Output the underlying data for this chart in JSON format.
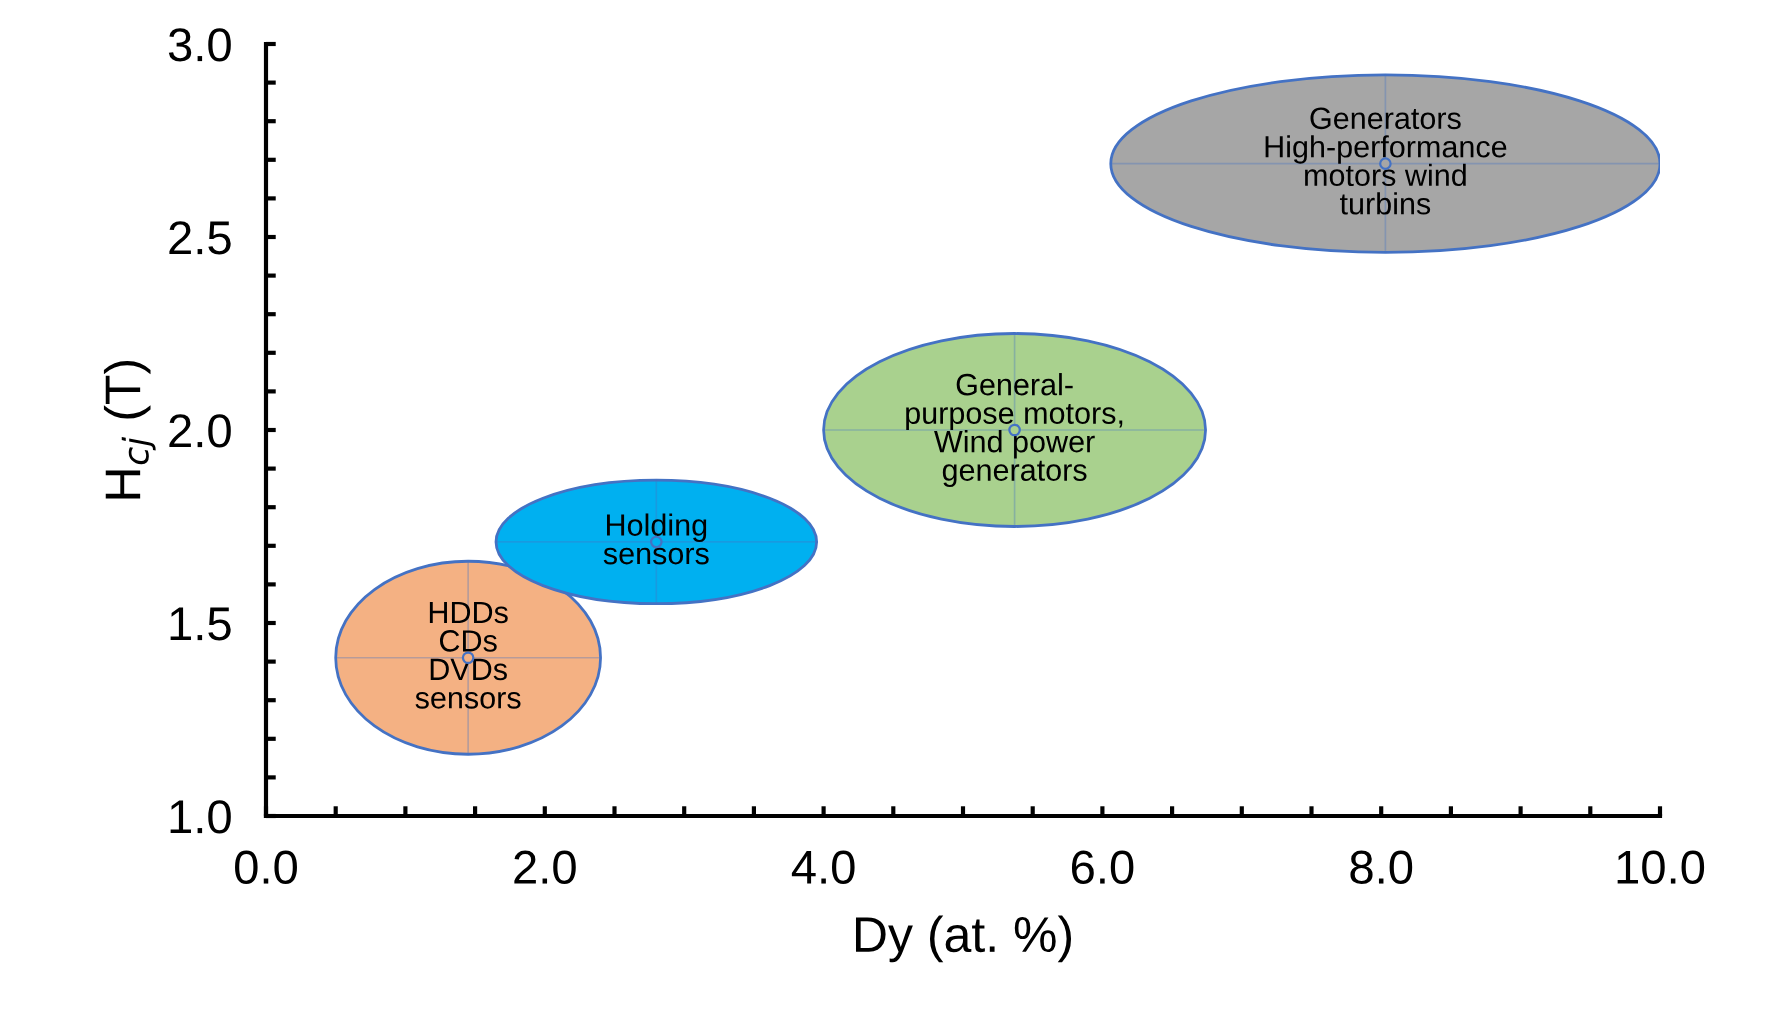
{
  "chart_data": {
    "type": "scatter",
    "xlabel": "Dy (at. %)",
    "ylabel": "H$_{cj}$ (T)",
    "x": [
      1.45,
      2.8,
      5.37,
      8.03
    ],
    "series": [
      {
        "values": [
          1.41,
          1.71,
          2.0,
          2.69
        ],
        "colors": [
          "#f4b183",
          "#00b0f0",
          "#a9d18e",
          "#a6a6a6"
        ],
        "xerrors": [
          0.95,
          1.15,
          1.37,
          1.97
        ],
        "errors": [
          0.25,
          0.16,
          0.25,
          0.23
        ]
      }
    ],
    "annotations": [
      {
        "text": "HDDs\nCDs\nDVDs\nsensors",
        "x": 1.45,
        "y": 1.41
      },
      {
        "text": "Holding\nsensors",
        "x": 2.8,
        "y": 1.71
      },
      {
        "text": "General-\npurpose motors,\nWind power\ngenerators",
        "x": 5.37,
        "y": 2.0
      },
      {
        "text": "Generators\nHigh-performance\nmotors wind\nturbins",
        "x": 8.03,
        "y": 2.69
      }
    ],
    "xlim": [
      0,
      10
    ],
    "ylim": [
      1.0,
      3.0
    ],
    "xticks": [
      {
        "value": 0,
        "label": "0.0"
      },
      {
        "value": 0.5,
        "label": null
      },
      {
        "value": 1,
        "label": null
      },
      {
        "value": 1.5,
        "label": null
      },
      {
        "value": 2,
        "label": "2.0"
      },
      {
        "value": 2.5,
        "label": null
      },
      {
        "value": 3,
        "label": null
      },
      {
        "value": 3.5,
        "label": null
      },
      {
        "value": 4,
        "label": "4.0"
      },
      {
        "value": 4.5,
        "label": null
      },
      {
        "value": 5,
        "label": null
      },
      {
        "value": 5.5,
        "label": null
      },
      {
        "value": 6,
        "label": "6.0"
      },
      {
        "value": 6.5,
        "label": null
      },
      {
        "value": 7,
        "label": null
      },
      {
        "value": 7.5,
        "label": null
      },
      {
        "value": 8,
        "label": "8.0"
      },
      {
        "value": 8.5,
        "label": null
      },
      {
        "value": 9,
        "label": null
      },
      {
        "value": 9.5,
        "label": null
      },
      {
        "value": 10,
        "label": "10.0"
      }
    ],
    "yticks": [
      {
        "value": 1.0,
        "label": "1.0"
      },
      {
        "value": 1.1,
        "label": null
      },
      {
        "value": 1.2,
        "label": null
      },
      {
        "value": 1.3,
        "label": null
      },
      {
        "value": 1.4,
        "label": null
      },
      {
        "value": 1.5,
        "label": "1.5"
      },
      {
        "value": 1.6,
        "label": null
      },
      {
        "value": 1.7,
        "label": null
      },
      {
        "value": 1.8,
        "label": null
      },
      {
        "value": 1.9,
        "label": null
      },
      {
        "value": 2.0,
        "label": "2.0"
      },
      {
        "value": 2.1,
        "label": null
      },
      {
        "value": 2.2,
        "label": null
      },
      {
        "value": 2.3,
        "label": null
      },
      {
        "value": 2.4,
        "label": null
      },
      {
        "value": 2.5,
        "label": "2.5"
      },
      {
        "value": 2.6,
        "label": null
      },
      {
        "value": 2.7,
        "label": null
      },
      {
        "value": 2.8,
        "label": null
      },
      {
        "value": 2.9,
        "label": null
      },
      {
        "value": 3.0,
        "label": "3.0"
      }
    ],
    "grid": false,
    "legend": false
  }
}
